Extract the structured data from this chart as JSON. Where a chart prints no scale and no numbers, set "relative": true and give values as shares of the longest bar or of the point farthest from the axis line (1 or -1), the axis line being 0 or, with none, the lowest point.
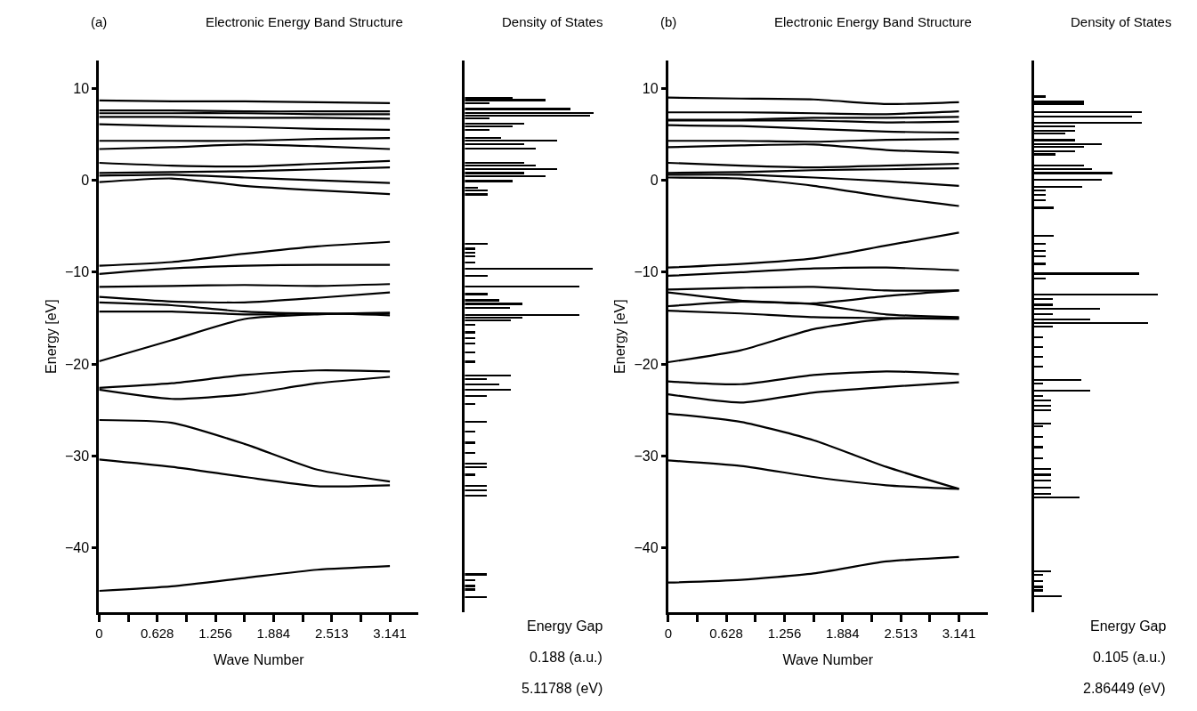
{
  "chart_data": [
    {
      "type": "line",
      "title": "Electronic Energy Band Structure",
      "annotations": [
        "(a)"
      ],
      "xlabel": "Wave Number",
      "ylabel": "Energy [eV]",
      "color": "#000000",
      "marker": "none",
      "line_style": "solid",
      "x": [
        0,
        0.785,
        1.571,
        2.356,
        3.141
      ],
      "xlim": [
        0,
        3.45
      ],
      "xticks": [
        0,
        {
          "value": 0.314,
          "label": null
        },
        0.628,
        {
          "value": 0.942,
          "label": null
        },
        1.256,
        {
          "value": 1.57,
          "label": null
        },
        1.884,
        {
          "value": 2.199,
          "label": null
        },
        2.513,
        {
          "value": 2.827,
          "label": null
        },
        3.141
      ],
      "ylim": [
        -47,
        13
      ],
      "yticks": [
        10,
        0,
        -10,
        -20,
        -30,
        -40
      ],
      "series": [
        {
          "values": [
            8.7,
            8.6,
            8.6,
            8.5,
            8.4
          ]
        },
        {
          "values": [
            7.6,
            7.6,
            7.5,
            7.5,
            7.5
          ]
        },
        {
          "values": [
            7.3,
            7.3,
            7.3,
            7.2,
            7.2
          ]
        },
        {
          "values": [
            6.9,
            6.9,
            6.8,
            6.8,
            6.7
          ]
        },
        {
          "values": [
            6.1,
            5.9,
            5.8,
            5.6,
            5.5
          ]
        },
        {
          "values": [
            4.3,
            4.3,
            4.3,
            4.5,
            4.6
          ]
        },
        {
          "values": [
            3.4,
            3.6,
            3.9,
            3.7,
            3.4
          ]
        },
        {
          "values": [
            1.9,
            1.6,
            1.5,
            1.8,
            2.1
          ]
        },
        {
          "values": [
            0.8,
            0.9,
            1.0,
            1.2,
            1.4
          ]
        },
        {
          "values": [
            0.5,
            0.6,
            0.3,
            0.0,
            -0.3
          ]
        },
        {
          "values": [
            -0.2,
            0.2,
            -0.6,
            -1.1,
            -1.5
          ]
        },
        {
          "values": [
            -9.3,
            -8.9,
            -8.0,
            -7.2,
            -6.7
          ]
        },
        {
          "values": [
            -10.2,
            -9.6,
            -9.3,
            -9.2,
            -9.2
          ]
        },
        {
          "values": [
            -11.6,
            -11.5,
            -11.4,
            -11.5,
            -11.3
          ]
        },
        {
          "values": [
            -12.7,
            -13.2,
            -13.3,
            -12.8,
            -12.2
          ]
        },
        {
          "values": [
            -13.3,
            -13.6,
            -14.3,
            -14.5,
            -14.4
          ]
        },
        {
          "values": [
            -14.3,
            -14.3,
            -14.6,
            -14.5,
            -14.7
          ]
        },
        {
          "values": [
            -19.7,
            -17.4,
            -15.1,
            -14.6,
            -14.5
          ]
        },
        {
          "values": [
            -22.6,
            -22.1,
            -21.2,
            -20.7,
            -20.8
          ]
        },
        {
          "values": [
            -22.8,
            -23.8,
            -23.3,
            -22.1,
            -21.4
          ]
        },
        {
          "values": [
            -26.1,
            -26.4,
            -28.7,
            -31.5,
            -32.8
          ]
        },
        {
          "values": [
            -30.4,
            -31.2,
            -32.3,
            -33.3,
            -33.2
          ]
        },
        {
          "values": [
            -44.7,
            -44.2,
            -43.3,
            -42.4,
            -42.0
          ]
        }
      ]
    },
    {
      "type": "bar",
      "orientation": "horizontal",
      "relative": true,
      "title": "Density of States",
      "annotations": [
        "Energy Gap",
        "0.188 (a.u.)",
        "5.11788 (eV)"
      ],
      "color": "#000000",
      "ylim": [
        -47,
        13
      ],
      "x": [
        8.96,
        8.7,
        8.34,
        7.71,
        7.3,
        7.0,
        6.67,
        6.13,
        5.84,
        5.42,
        4.59,
        4.25,
        3.92,
        3.42,
        1.88,
        1.54,
        1.17,
        0.75,
        0.42,
        -0.13,
        -0.84,
        -1.17,
        -1.59,
        -6.96,
        -7.5,
        -7.9,
        -8.3,
        -8.97,
        -9.68,
        -10.43,
        -11.6,
        -12.43,
        -13.1,
        -13.5,
        -13.9,
        -14.7,
        -14.99,
        -15.3,
        -15.8,
        -16.6,
        -17.2,
        -17.8,
        -18.8,
        -19.8,
        -21.3,
        -21.7,
        -22.3,
        -22.85,
        -23.5,
        -24.4,
        -26.3,
        -27.4,
        -28.6,
        -29.7,
        -30.86,
        -31.3,
        -32.1,
        -33.3,
        -33.8,
        -34.4,
        -42.95,
        -43.6,
        -44.2,
        -44.6,
        -45.4
      ],
      "values": [
        0.37,
        0.63,
        0.19,
        0.82,
        1.0,
        0.97,
        0.19,
        0.46,
        0.37,
        0.19,
        0.28,
        0.72,
        0.46,
        0.55,
        0.46,
        0.55,
        0.72,
        0.46,
        0.63,
        0.37,
        0.1,
        0.18,
        0.18,
        0.18,
        0.08,
        0.08,
        0.08,
        0.08,
        0.99,
        0.18,
        0.89,
        0.18,
        0.27,
        0.45,
        0.35,
        0.89,
        0.45,
        0.36,
        0.08,
        0.08,
        0.08,
        0.08,
        0.08,
        0.08,
        0.36,
        0.17,
        0.27,
        0.36,
        0.17,
        0.08,
        0.17,
        0.08,
        0.08,
        0.08,
        0.17,
        0.17,
        0.08,
        0.17,
        0.17,
        0.17,
        0.17,
        0.08,
        0.08,
        0.08,
        0.17
      ]
    },
    {
      "type": "line",
      "title": "Electronic Energy Band Structure",
      "annotations": [
        "(b)"
      ],
      "xlabel": "Wave Number",
      "ylabel": "Energy [eV]",
      "color": "#000000",
      "marker": "none",
      "line_style": "solid",
      "x": [
        0,
        0.785,
        1.571,
        2.356,
        3.141
      ],
      "xlim": [
        0,
        3.45
      ],
      "xticks": [
        0,
        {
          "value": 0.314,
          "label": null
        },
        0.628,
        {
          "value": 0.942,
          "label": null
        },
        1.256,
        {
          "value": 1.57,
          "label": null
        },
        1.884,
        {
          "value": 2.199,
          "label": null
        },
        2.513,
        {
          "value": 2.827,
          "label": null
        },
        3.141
      ],
      "ylim": [
        -47,
        13
      ],
      "yticks": [
        10,
        0,
        -10,
        -20,
        -30,
        -40
      ],
      "series": [
        {
          "values": [
            9.0,
            8.9,
            8.8,
            8.3,
            8.5
          ]
        },
        {
          "values": [
            7.4,
            7.4,
            7.3,
            7.2,
            7.5
          ]
        },
        {
          "values": [
            6.6,
            6.6,
            6.8,
            6.8,
            6.9
          ]
        },
        {
          "values": [
            6.5,
            6.5,
            6.5,
            6.3,
            6.4
          ]
        },
        {
          "values": [
            6.0,
            5.9,
            5.6,
            5.3,
            5.2
          ]
        },
        {
          "values": [
            4.3,
            4.3,
            4.2,
            4.4,
            4.5
          ]
        },
        {
          "values": [
            3.6,
            3.8,
            3.9,
            3.3,
            3.0
          ]
        },
        {
          "values": [
            1.9,
            1.6,
            1.4,
            1.6,
            1.8
          ]
        },
        {
          "values": [
            0.8,
            0.9,
            1.1,
            1.2,
            1.3
          ]
        },
        {
          "values": [
            0.6,
            0.6,
            0.3,
            -0.1,
            -0.6
          ]
        },
        {
          "values": [
            0.3,
            0.2,
            -0.6,
            -1.8,
            -2.8
          ]
        },
        {
          "values": [
            -9.5,
            -9.1,
            -8.5,
            -7.1,
            -5.7
          ]
        },
        {
          "values": [
            -10.4,
            -10.0,
            -9.6,
            -9.5,
            -9.8
          ]
        },
        {
          "values": [
            -11.9,
            -11.7,
            -11.6,
            -12.0,
            -12.0
          ]
        },
        {
          "values": [
            -12.2,
            -13.1,
            -13.5,
            -14.6,
            -14.9
          ]
        },
        {
          "values": [
            -13.7,
            -13.2,
            -13.4,
            -12.6,
            -12.0
          ]
        },
        {
          "values": [
            -14.2,
            -14.5,
            -14.9,
            -15.0,
            -15.1
          ]
        },
        {
          "values": [
            -19.8,
            -18.5,
            -16.2,
            -15.1,
            -15.0
          ]
        },
        {
          "values": [
            -21.9,
            -22.2,
            -21.2,
            -20.8,
            -21.1
          ]
        },
        {
          "values": [
            -23.3,
            -24.2,
            -23.1,
            -22.5,
            -22.0
          ]
        },
        {
          "values": [
            -25.4,
            -26.3,
            -28.3,
            -31.2,
            -33.6
          ]
        },
        {
          "values": [
            -30.5,
            -31.1,
            -32.3,
            -33.2,
            -33.6
          ]
        },
        {
          "values": [
            -43.8,
            -43.5,
            -42.8,
            -41.5,
            -41.0
          ]
        }
      ]
    },
    {
      "type": "bar",
      "orientation": "horizontal",
      "relative": true,
      "title": "Density of States",
      "annotations": [
        "Energy Gap",
        "0.105 (a.u.)",
        "2.86449 (eV)"
      ],
      "color": "#000000",
      "ylim": [
        -47,
        13
      ],
      "x": [
        9.08,
        8.5,
        8.24,
        7.35,
        6.93,
        6.22,
        5.8,
        5.38,
        5.04,
        4.32,
        3.9,
        3.57,
        3.15,
        2.77,
        1.59,
        1.17,
        0.75,
        0.03,
        -0.73,
        -1.15,
        -1.65,
        -2.2,
        -3.04,
        -6.1,
        -6.96,
        -7.7,
        -8.3,
        -9.14,
        -10.2,
        -10.75,
        -12.5,
        -12.93,
        -13.6,
        -14.0,
        -14.6,
        -15.2,
        -15.6,
        -16.0,
        -17.15,
        -18.2,
        -19.25,
        -20.3,
        -21.77,
        -22.2,
        -22.95,
        -23.5,
        -24.0,
        -24.6,
        -25.1,
        -26.5,
        -26.8,
        -28.0,
        -29.1,
        -30.3,
        -31.5,
        -32.1,
        -32.7,
        -33.5,
        -34.2,
        -34.6,
        -42.6,
        -43.0,
        -43.7,
        -44.3,
        -44.7,
        -45.3
      ],
      "values": [
        0.09,
        0.4,
        0.4,
        0.87,
        0.79,
        0.87,
        0.33,
        0.33,
        0.25,
        0.33,
        0.55,
        0.4,
        0.33,
        0.17,
        0.4,
        0.47,
        0.63,
        0.55,
        0.39,
        0.09,
        0.09,
        0.09,
        0.16,
        0.16,
        0.09,
        0.09,
        0.09,
        0.09,
        0.85,
        0.09,
        1.0,
        0.15,
        0.15,
        0.53,
        0.15,
        0.45,
        0.92,
        0.15,
        0.07,
        0.07,
        0.07,
        0.07,
        0.38,
        0.07,
        0.45,
        0.07,
        0.14,
        0.14,
        0.14,
        0.14,
        0.07,
        0.07,
        0.07,
        0.07,
        0.14,
        0.14,
        0.14,
        0.14,
        0.14,
        0.37,
        0.14,
        0.07,
        0.07,
        0.07,
        0.07,
        0.22
      ]
    }
  ]
}
